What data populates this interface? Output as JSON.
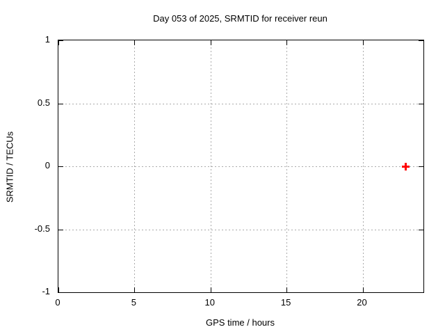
{
  "figure": {
    "background": "#ffffff"
  },
  "chart_data": {
    "type": "scatter",
    "title": "Day 053 of 2025, SRMTID for receiver reun",
    "xlabel": "GPS time / hours",
    "ylabel": "SRMTID / TECUs",
    "xlim": [
      0,
      24
    ],
    "ylim": [
      -1,
      1
    ],
    "xticks": [
      0,
      5,
      10,
      15,
      20
    ],
    "yticks": [
      -1,
      -0.5,
      0,
      0.5,
      1
    ],
    "grid": true,
    "legend": "none",
    "frame_color": "#000000",
    "grid_color": "#aaaaaa",
    "text_color": "#000000",
    "series": [
      {
        "name": "SRMTID",
        "marker": "plus",
        "color": "#ff0000",
        "points": [
          {
            "x": 22.8,
            "y": 0.0
          }
        ]
      }
    ]
  }
}
